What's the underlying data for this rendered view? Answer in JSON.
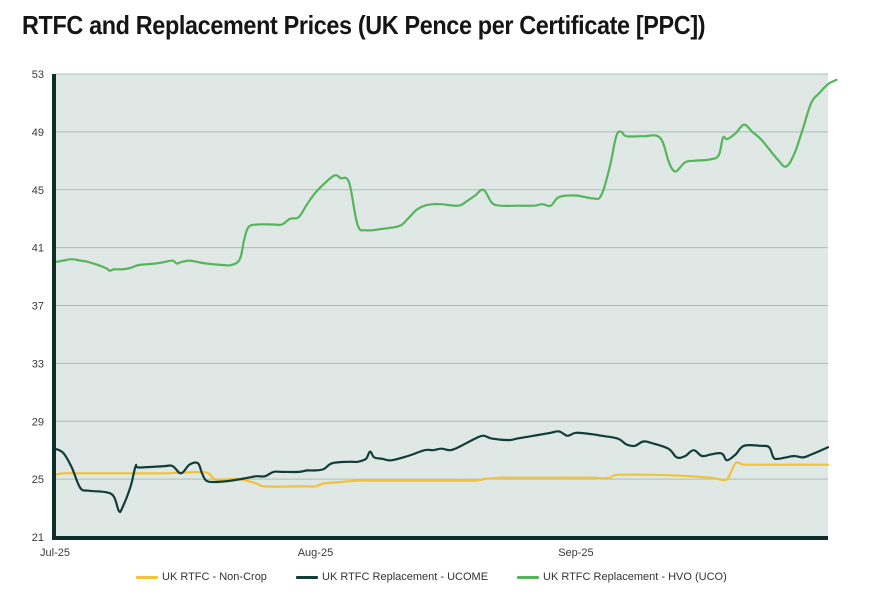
{
  "chart_data": {
    "type": "line",
    "title": "RTFC and Replacement Prices (UK Pence per Certificate [PPC])",
    "xlabel": "",
    "ylabel": "",
    "ylim": [
      21,
      53
    ],
    "yticks": [
      21,
      25,
      29,
      33,
      37,
      41,
      45,
      49,
      53
    ],
    "xlim": [
      0,
      92
    ],
    "xticks": [
      {
        "x": 0,
        "label": "Jul-25"
      },
      {
        "x": 31,
        "label": "Aug-25"
      },
      {
        "x": 62,
        "label": "Sep-25"
      }
    ],
    "grid": true,
    "legend_position": "bottom",
    "series": [
      {
        "name": "UK RTFC - Non-Crop",
        "color": "#F2C23A",
        "points": [
          [
            0,
            25.3
          ],
          [
            1,
            25.4
          ],
          [
            3,
            25.4
          ],
          [
            7,
            25.4
          ],
          [
            9,
            25.4
          ],
          [
            13,
            25.4
          ],
          [
            15,
            25.45
          ],
          [
            18,
            25.45
          ],
          [
            19,
            25.0
          ],
          [
            21,
            25.0
          ],
          [
            22,
            25.0
          ],
          [
            24,
            24.7
          ],
          [
            25,
            24.5
          ],
          [
            29,
            24.5
          ],
          [
            30,
            24.5
          ],
          [
            31,
            24.5
          ],
          [
            32,
            24.7
          ],
          [
            34,
            24.8
          ],
          [
            36,
            24.9
          ],
          [
            38,
            24.9
          ],
          [
            41,
            24.9
          ],
          [
            45,
            24.9
          ],
          [
            50,
            24.9
          ],
          [
            51,
            25.0
          ],
          [
            53,
            25.1
          ],
          [
            55,
            25.1
          ],
          [
            60,
            25.1
          ],
          [
            64,
            25.1
          ],
          [
            65,
            25.05
          ],
          [
            66,
            25.1
          ],
          [
            67,
            25.3
          ],
          [
            71,
            25.3
          ],
          [
            74,
            25.25
          ],
          [
            78,
            25.1
          ],
          [
            79,
            25.0
          ],
          [
            80,
            25.0
          ],
          [
            81,
            26.1
          ],
          [
            82,
            26.0
          ],
          [
            84,
            26.0
          ],
          [
            92,
            26.0
          ]
        ]
      },
      {
        "name": "UK RTFC Replacement - UCOME",
        "color": "#123D38",
        "points": [
          [
            0,
            27.1
          ],
          [
            1,
            26.8
          ],
          [
            2,
            25.8
          ],
          [
            3,
            24.4
          ],
          [
            4,
            24.2
          ],
          [
            6,
            24.1
          ],
          [
            7,
            23.8
          ],
          [
            7.6,
            22.8
          ],
          [
            8,
            23.0
          ],
          [
            9,
            24.5
          ],
          [
            9.6,
            25.9
          ],
          [
            10,
            25.8
          ],
          [
            13,
            25.9
          ],
          [
            14,
            25.9
          ],
          [
            15,
            25.4
          ],
          [
            16,
            26.0
          ],
          [
            17,
            26.1
          ],
          [
            17.5,
            25.4
          ],
          [
            18,
            24.9
          ],
          [
            19,
            24.8
          ],
          [
            21,
            24.9
          ],
          [
            23,
            25.1
          ],
          [
            24,
            25.2
          ],
          [
            25,
            25.2
          ],
          [
            26,
            25.5
          ],
          [
            27,
            25.5
          ],
          [
            29,
            25.5
          ],
          [
            30,
            25.6
          ],
          [
            31,
            25.6
          ],
          [
            32,
            25.7
          ],
          [
            33,
            26.1
          ],
          [
            35,
            26.2
          ],
          [
            36,
            26.2
          ],
          [
            37,
            26.4
          ],
          [
            37.5,
            26.9
          ],
          [
            38,
            26.5
          ],
          [
            39,
            26.4
          ],
          [
            40,
            26.3
          ],
          [
            42,
            26.6
          ],
          [
            44,
            27.0
          ],
          [
            45,
            27.0
          ],
          [
            46,
            27.1
          ],
          [
            47,
            27.0
          ],
          [
            48,
            27.2
          ],
          [
            50,
            27.8
          ],
          [
            51,
            28.0
          ],
          [
            52,
            27.8
          ],
          [
            54,
            27.7
          ],
          [
            55,
            27.8
          ],
          [
            57,
            28.0
          ],
          [
            59,
            28.2
          ],
          [
            60,
            28.3
          ],
          [
            61,
            28.0
          ],
          [
            62,
            28.2
          ],
          [
            64,
            28.1
          ],
          [
            65,
            28.0
          ],
          [
            67,
            27.8
          ],
          [
            68,
            27.4
          ],
          [
            69,
            27.3
          ],
          [
            70,
            27.6
          ],
          [
            71,
            27.5
          ],
          [
            73,
            27.1
          ],
          [
            74,
            26.5
          ],
          [
            75,
            26.6
          ],
          [
            76,
            27.0
          ],
          [
            77,
            26.6
          ],
          [
            78,
            26.7
          ],
          [
            79,
            26.8
          ],
          [
            79.5,
            26.7
          ],
          [
            80,
            26.3
          ],
          [
            81,
            26.7
          ],
          [
            82,
            27.3
          ],
          [
            84,
            27.3
          ],
          [
            85,
            27.2
          ],
          [
            85.5,
            26.5
          ],
          [
            86,
            26.4
          ],
          [
            87,
            26.5
          ],
          [
            88,
            26.6
          ],
          [
            89,
            26.5
          ],
          [
            90,
            26.7
          ],
          [
            92,
            27.2
          ]
        ]
      },
      {
        "name": "UK RTFC Replacement - HVO (UCO)",
        "color": "#56B55C",
        "points": [
          [
            0,
            40.0
          ],
          [
            1,
            40.1
          ],
          [
            2,
            40.2
          ],
          [
            3,
            40.1
          ],
          [
            4,
            40.0
          ],
          [
            6,
            39.6
          ],
          [
            6.5,
            39.4
          ],
          [
            7,
            39.5
          ],
          [
            8,
            39.5
          ],
          [
            9,
            39.6
          ],
          [
            10,
            39.8
          ],
          [
            12,
            39.9
          ],
          [
            13,
            40.0
          ],
          [
            14,
            40.1
          ],
          [
            14.5,
            39.9
          ],
          [
            15,
            40.0
          ],
          [
            16,
            40.1
          ],
          [
            17,
            40.0
          ],
          [
            18,
            39.9
          ],
          [
            20,
            39.8
          ],
          [
            21,
            39.8
          ],
          [
            22,
            40.2
          ],
          [
            22.5,
            41.5
          ],
          [
            23,
            42.4
          ],
          [
            24,
            42.6
          ],
          [
            26,
            42.6
          ],
          [
            27,
            42.6
          ],
          [
            28,
            43.0
          ],
          [
            29,
            43.1
          ],
          [
            30,
            44.0
          ],
          [
            31,
            44.8
          ],
          [
            32,
            45.4
          ],
          [
            33,
            45.9
          ],
          [
            33.5,
            46.0
          ],
          [
            34,
            45.8
          ],
          [
            35,
            45.5
          ],
          [
            36,
            42.6
          ],
          [
            37,
            42.2
          ],
          [
            39,
            42.3
          ],
          [
            41,
            42.5
          ],
          [
            42,
            43.0
          ],
          [
            43,
            43.6
          ],
          [
            44,
            43.9
          ],
          [
            45,
            44.0
          ],
          [
            46,
            44.0
          ],
          [
            48,
            43.9
          ],
          [
            49,
            44.2
          ],
          [
            50,
            44.6
          ],
          [
            51,
            45.0
          ],
          [
            52,
            44.1
          ],
          [
            53,
            43.9
          ],
          [
            55,
            43.9
          ],
          [
            57,
            43.9
          ],
          [
            58,
            44.0
          ],
          [
            59,
            43.9
          ],
          [
            60,
            44.5
          ],
          [
            62,
            44.6
          ],
          [
            64,
            44.4
          ],
          [
            65,
            44.6
          ],
          [
            66,
            46.5
          ],
          [
            66.8,
            48.7
          ],
          [
            67.4,
            49.0
          ],
          [
            68,
            48.7
          ],
          [
            70,
            48.7
          ],
          [
            72,
            48.6
          ],
          [
            73,
            47.0
          ],
          [
            73.5,
            46.4
          ],
          [
            74,
            46.3
          ],
          [
            75,
            46.9
          ],
          [
            76,
            47.0
          ],
          [
            78,
            47.1
          ],
          [
            79,
            47.4
          ],
          [
            79.5,
            48.6
          ],
          [
            80,
            48.5
          ],
          [
            81,
            48.9
          ],
          [
            82,
            49.5
          ],
          [
            83,
            49.0
          ],
          [
            84,
            48.5
          ],
          [
            85,
            47.8
          ],
          [
            86,
            47.1
          ],
          [
            87,
            46.6
          ],
          [
            88,
            47.5
          ],
          [
            89,
            49.2
          ],
          [
            90,
            51.0
          ],
          [
            91,
            51.7
          ],
          [
            92,
            52.3
          ],
          [
            93,
            52.6
          ]
        ]
      }
    ]
  }
}
